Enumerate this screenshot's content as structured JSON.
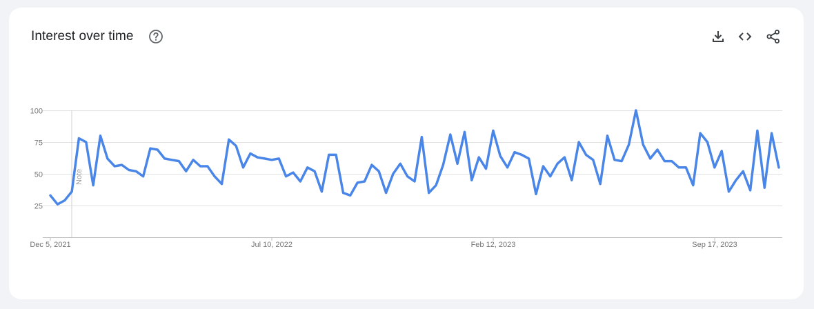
{
  "header": {
    "title": "Interest over time",
    "help_icon": "help-circle-icon",
    "download_icon": "download-icon",
    "embed_icon": "code-embed-icon",
    "share_icon": "share-icon"
  },
  "colors": {
    "line": "#4a86e8",
    "accent": "#4a86e8"
  },
  "chart_data": {
    "type": "line",
    "title": "Interest over time",
    "xlabel": "",
    "ylabel": "",
    "ylim": [
      0,
      100
    ],
    "yticks": [
      "25",
      "50",
      "75",
      "100"
    ],
    "grid": true,
    "x_ticks": [
      "Dec 5, 2021",
      "Jul 10, 2022",
      "Feb 12, 2023",
      "Sep 17, 2023"
    ],
    "annotation": "Note",
    "series": [
      {
        "values": [
          33,
          26,
          29,
          36,
          78,
          75,
          41,
          80,
          62,
          56,
          57,
          53,
          52,
          48,
          70,
          69,
          62,
          61,
          60,
          52,
          61,
          56,
          56,
          48,
          42,
          77,
          72,
          55,
          66,
          63,
          62,
          61,
          62,
          48,
          51,
          44,
          55,
          52,
          36,
          65,
          65,
          35,
          33,
          43,
          44,
          57,
          52,
          35,
          50,
          58,
          48,
          44,
          79,
          35,
          41,
          57,
          81,
          58,
          83,
          45,
          63,
          54,
          84,
          64,
          55,
          67,
          65,
          62,
          34,
          56,
          48,
          58,
          63,
          45,
          75,
          65,
          61,
          42,
          80,
          61,
          60,
          73,
          100,
          73,
          62,
          69,
          60,
          60,
          55,
          55,
          41,
          82,
          75,
          55,
          68,
          36,
          45,
          52,
          37,
          84,
          39,
          82,
          55
        ]
      }
    ]
  }
}
